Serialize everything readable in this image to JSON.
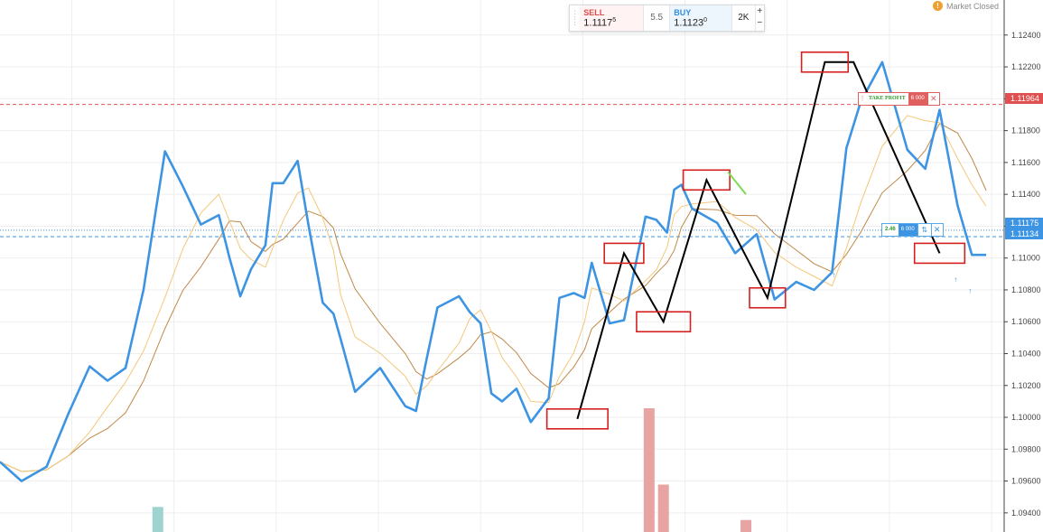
{
  "trade_panel": {
    "sell_label": "SELL",
    "sell_price": "1.1117",
    "sell_super": "5",
    "spread": "5.5",
    "buy_label": "BUY",
    "buy_price": "1.1123",
    "buy_super": "0",
    "quantity": "2K",
    "plus": "+",
    "minus": "−"
  },
  "market_status": {
    "icon": "!",
    "text": "Market Closed"
  },
  "take_profit": {
    "label": "TAKE PROFIT",
    "qty": "6 000",
    "close": "✕"
  },
  "position": {
    "pnl": "2.46",
    "qty": "6 000",
    "reverse": "⇅",
    "close": "✕"
  },
  "price_labels": {
    "take_profit": "1.11964",
    "bid": "1.11175",
    "ask": "1.11134"
  },
  "colors": {
    "price_line": "#3d94e2",
    "ma_fast": "#f3c87a",
    "ma_slow": "#c0894a",
    "zigzag": "#000000",
    "boxes": "#d62020",
    "volume": "#e8a3a3",
    "volume_alt": "#9fd3cf",
    "tp_line": "#e05050"
  },
  "chart_data": {
    "type": "line",
    "y_ticks": [
      "1.12400",
      "1.12200",
      "1.12000",
      "1.11800",
      "1.11600",
      "1.11400",
      "1.11200",
      "1.11000",
      "1.10800",
      "1.10600",
      "1.10400",
      "1.10200",
      "1.10000",
      "1.09800",
      "1.09600",
      "1.09400"
    ],
    "ylim": [
      1.0928,
      1.1262
    ],
    "take_profit": 1.11964,
    "bid": 1.11175,
    "ask": 1.11134,
    "series": [
      {
        "x": [
          0,
          6,
          13,
          19,
          25,
          30,
          35,
          40,
          46,
          51,
          56,
          61,
          64,
          67,
          70,
          74,
          76,
          79,
          83,
          86,
          90,
          93,
          95,
          99,
          106,
          113,
          116,
          119,
          122,
          128,
          131,
          134,
          137,
          140,
          144,
          148,
          153,
          156,
          160,
          163,
          165,
          170,
          174,
          180,
          183,
          186,
          188,
          190,
          193,
          200,
          205
        ],
        "y": [
          1.0972,
          1.096,
          1.0969,
          1.1002,
          1.1032,
          1.1023,
          1.1031,
          1.108,
          1.1167,
          1.1145,
          1.1121,
          1.1127,
          1.11,
          1.1076,
          1.1093,
          1.1108,
          1.1147,
          1.1147,
          1.1161,
          1.1121,
          1.1072,
          1.1065,
          1.1049,
          1.1016,
          1.1031,
          1.1007,
          1.1004,
          1.1037,
          1.1069,
          1.1076,
          1.1066,
          1.1059,
          1.1015,
          1.101,
          1.1018,
          1.0997,
          1.1012,
          1.1075,
          1.1078,
          1.1075,
          1.1097,
          1.1059,
          1.1061,
          1.1126,
          1.1124,
          1.1116,
          1.1143,
          1.1146,
          1.1131,
          1.1122,
          1.1103
        ]
      },
      {
        "x": [
          205,
          211,
          216,
          222,
          227,
          232,
          236,
          240,
          246,
          253,
          258,
          262,
          267,
          271,
          275
        ],
        "y": [
          1.1103,
          1.1115,
          1.1074,
          1.1085,
          1.108,
          1.1091,
          1.1169,
          1.1198,
          1.1223,
          1.1168,
          1.1156,
          1.1193,
          1.1133,
          1.1102,
          1.1102
        ]
      }
    ],
    "zigzag": {
      "x": [
        161,
        174,
        185,
        197,
        214,
        230,
        238,
        262
      ],
      "y": [
        1.0999,
        1.1103,
        1.106,
        1.1149,
        1.1075,
        1.1223,
        1.1223,
        1.1103
      ]
    },
    "volume": {
      "x": [
        181,
        185,
        208
      ],
      "v": [
        65,
        24,
        5
      ]
    },
    "volume_alt": {
      "x": [
        44
      ],
      "v": [
        12
      ]
    }
  }
}
